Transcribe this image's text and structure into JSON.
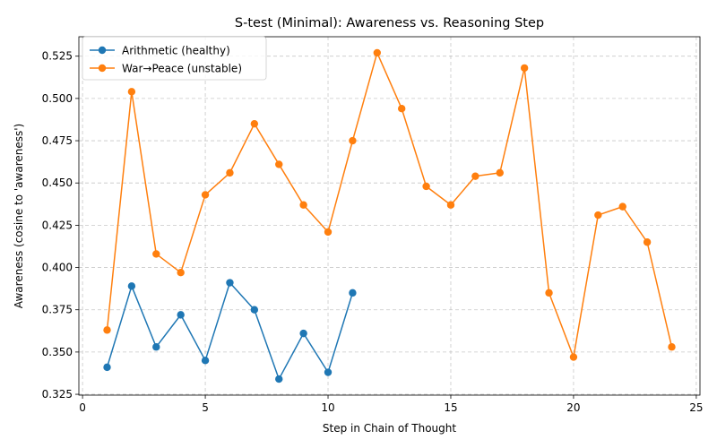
{
  "chart_data": {
    "type": "line",
    "title": "S-test (Minimal): Awareness vs. Reasoning Step",
    "xlabel": "Step in Chain of Thought",
    "ylabel": "Awareness (cosine to 'awareness')",
    "xlim": [
      -0.15,
      25.15
    ],
    "ylim": [
      0.3245,
      0.5365
    ],
    "xticks": [
      0,
      5,
      10,
      15,
      20,
      25
    ],
    "yticks": [
      0.325,
      0.35,
      0.375,
      0.4,
      0.425,
      0.45,
      0.475,
      0.5,
      0.525
    ],
    "xtick_labels": [
      "0",
      "5",
      "10",
      "15",
      "20",
      "25"
    ],
    "ytick_labels": [
      "0.325",
      "0.350",
      "0.375",
      "0.400",
      "0.425",
      "0.450",
      "0.475",
      "0.500",
      "0.525"
    ],
    "grid": true,
    "legend_position": "top-left",
    "series": [
      {
        "name": "Arithmetic (healthy)",
        "color": "#1f77b4",
        "marker": "circle",
        "x": [
          1,
          2,
          3,
          4,
          5,
          6,
          7,
          8,
          9,
          10,
          11
        ],
        "y": [
          0.341,
          0.389,
          0.353,
          0.372,
          0.345,
          0.391,
          0.375,
          0.334,
          0.361,
          0.338,
          0.385
        ]
      },
      {
        "name": "War→Peace (unstable)",
        "color": "#ff7f0e",
        "marker": "circle",
        "x": [
          1,
          2,
          3,
          4,
          5,
          6,
          7,
          8,
          9,
          10,
          11,
          12,
          13,
          14,
          15,
          16,
          17,
          18,
          19,
          20,
          21,
          22,
          23,
          24
        ],
        "y": [
          0.363,
          0.504,
          0.408,
          0.397,
          0.443,
          0.456,
          0.485,
          0.461,
          0.437,
          0.421,
          0.475,
          0.527,
          0.494,
          0.448,
          0.437,
          0.454,
          0.456,
          0.518,
          0.385,
          0.347,
          0.431,
          0.436,
          0.415,
          0.353
        ]
      }
    ]
  }
}
